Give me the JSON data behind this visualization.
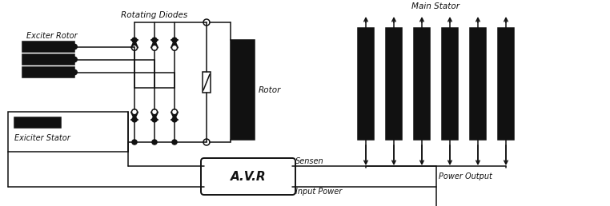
{
  "bg_color": "#ffffff",
  "lc": "#111111",
  "fc": "#111111",
  "labels": {
    "rotating_diodes": "Rotating Diodes",
    "exciter_rotor": "Exciter Rotor",
    "exciter_stator": "Exiciter Stator",
    "rotor": "Rotor",
    "main_stator": "Main Stator",
    "avr": "A.V.R",
    "sensen": "Sensen",
    "input_power": "Input Power",
    "power_output": "Power Output"
  },
  "figsize": [
    7.62,
    2.58
  ],
  "dpi": 100
}
